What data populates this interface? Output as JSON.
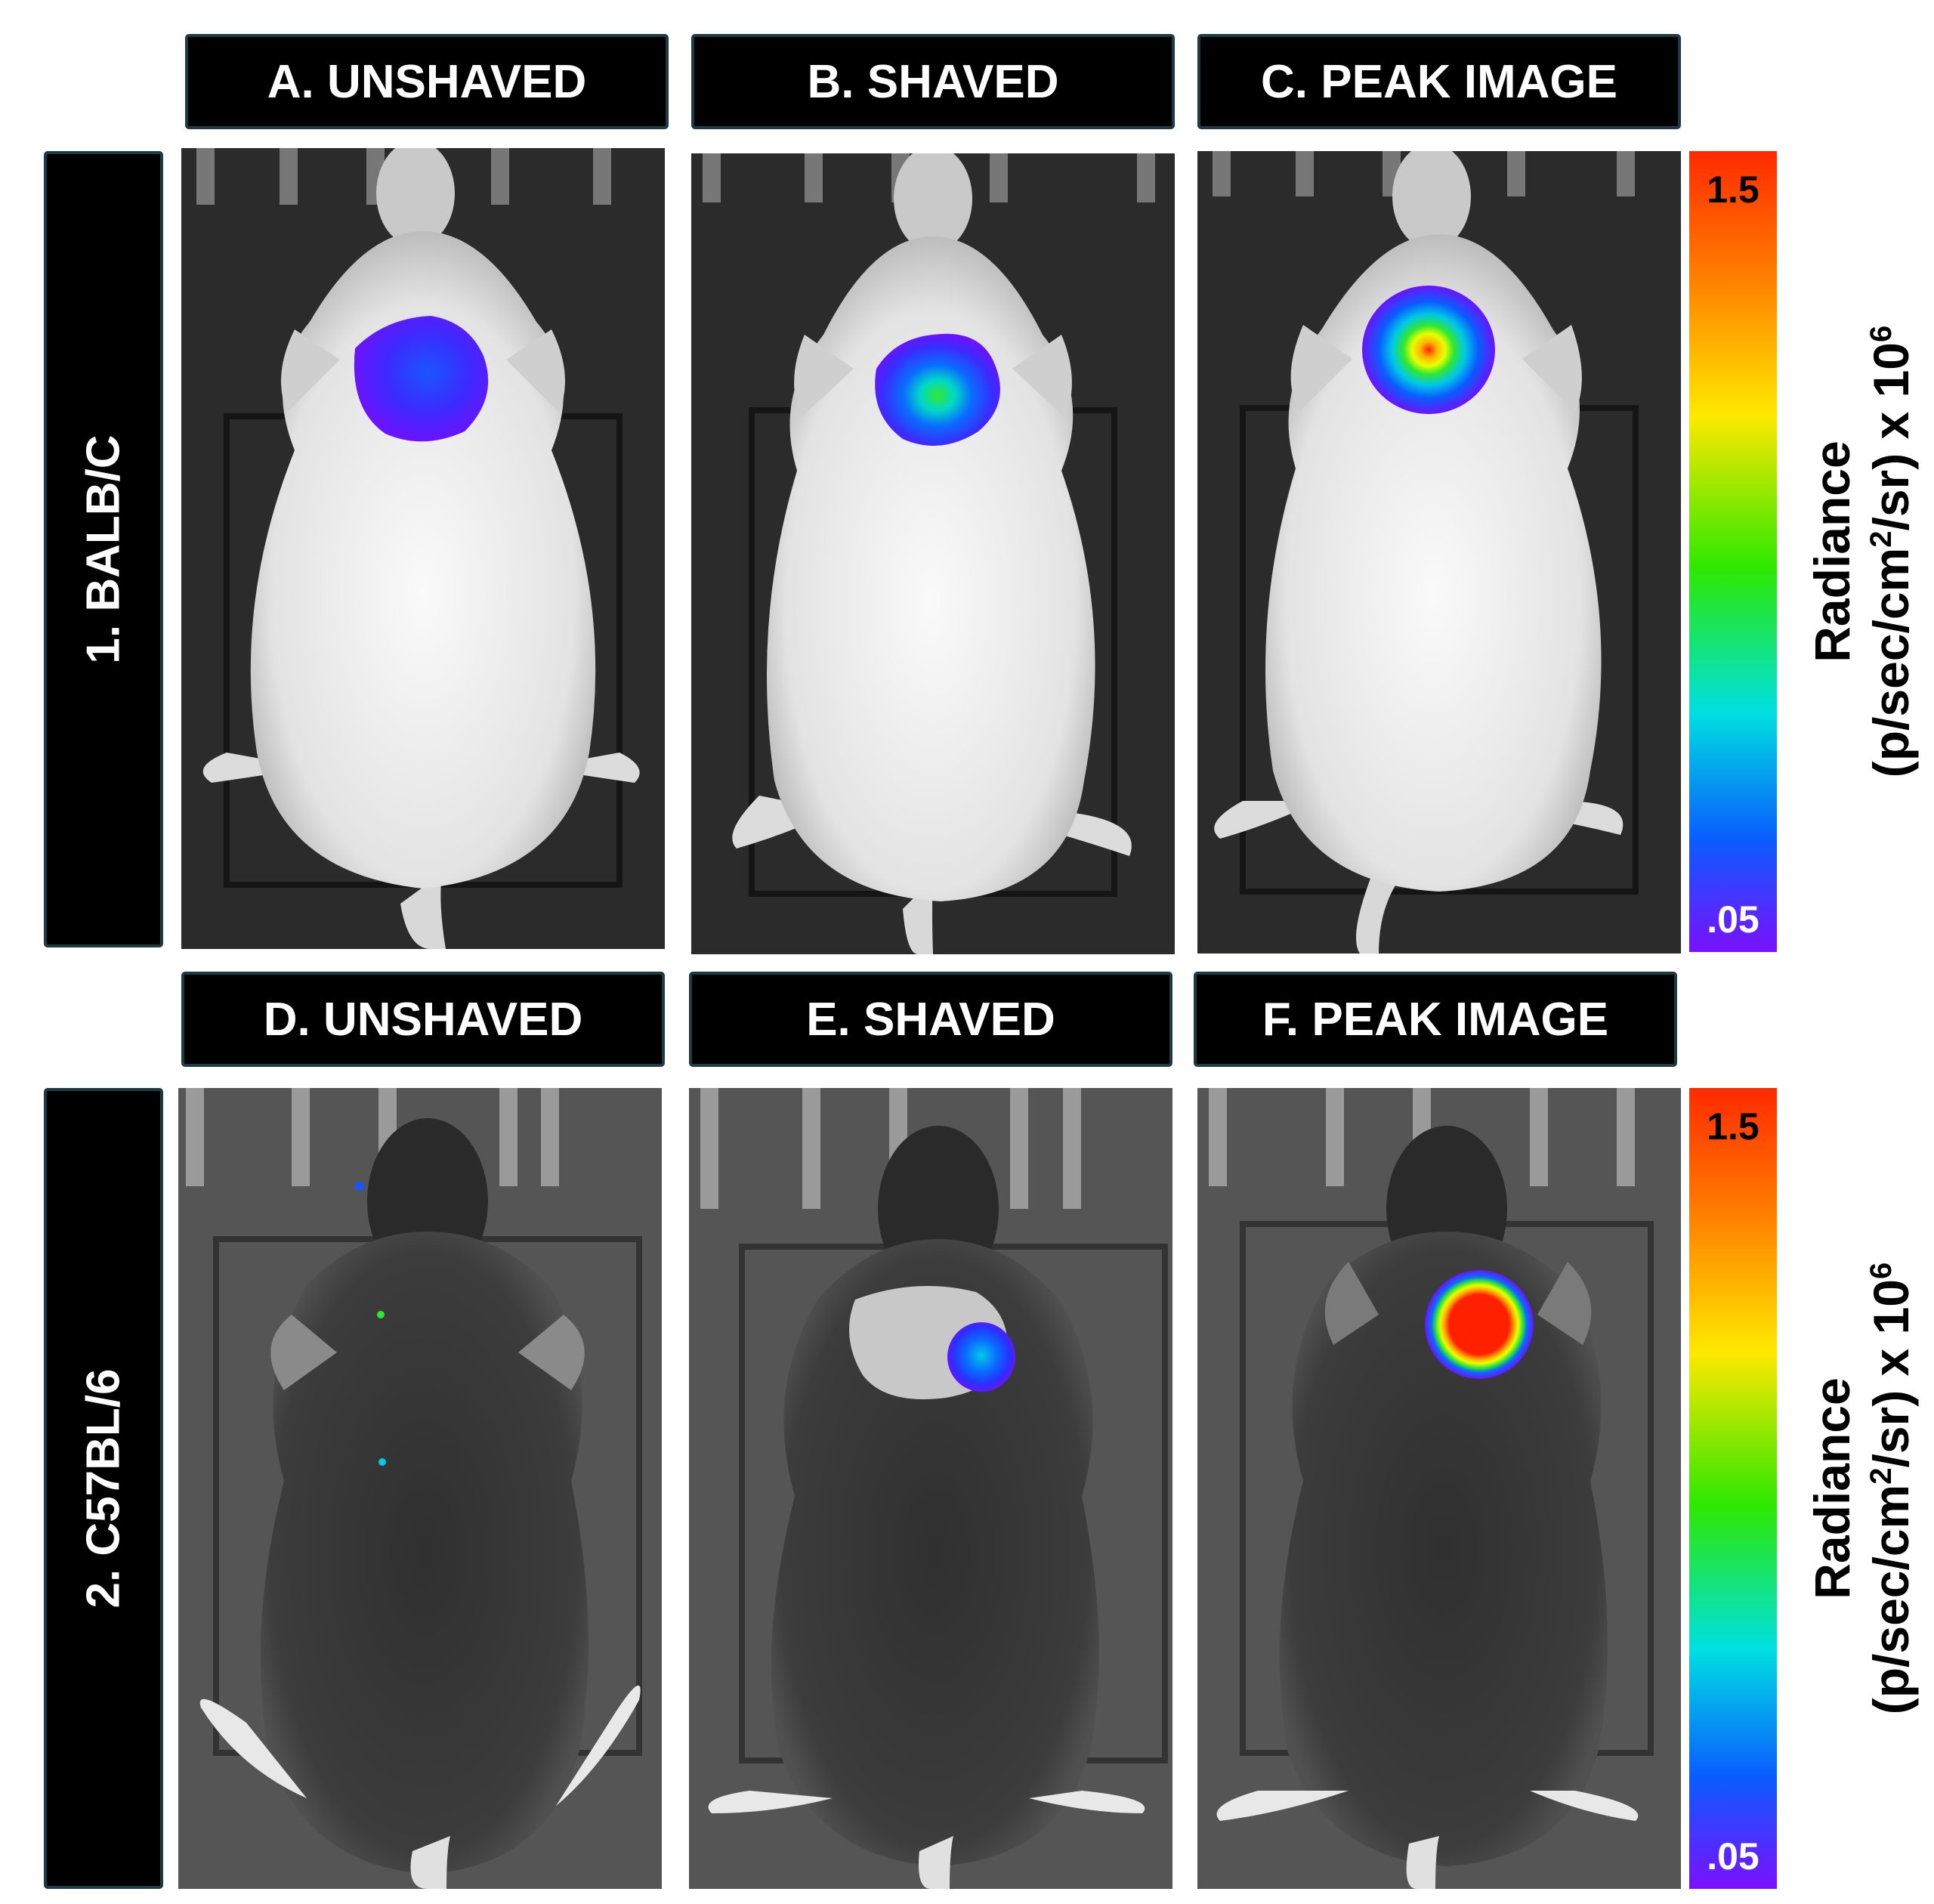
{
  "columns_row1": [
    "A. UNSHAVED",
    "B. SHAVED",
    "C. PEAK IMAGE"
  ],
  "columns_row2": [
    "D. UNSHAVED",
    "E. SHAVED",
    "F. PEAK IMAGE"
  ],
  "rows": [
    "1. BALB/C",
    "2. C57BL/6"
  ],
  "colorbar": {
    "max_label": "1.5",
    "min_label": ".05",
    "title_line1": "Radiance",
    "title_line2_pre": "(p/sec/cm",
    "title_line2_sup": "2",
    "title_line2_post": "/sr) x 10",
    "title_line2_exp": "6"
  },
  "colors": {
    "label_bg": "#000000",
    "label_border": "#1f3a44",
    "signal_high": "#ff2000",
    "signal_low": "#6a14ff"
  },
  "panels": {
    "A": {
      "strain": "albino",
      "signal": "low"
    },
    "B": {
      "strain": "albino",
      "signal": "medium"
    },
    "C": {
      "strain": "albino",
      "signal": "high"
    },
    "D": {
      "strain": "black",
      "signal": "none"
    },
    "E": {
      "strain": "black",
      "signal": "medium"
    },
    "F": {
      "strain": "black",
      "signal": "peak"
    }
  }
}
